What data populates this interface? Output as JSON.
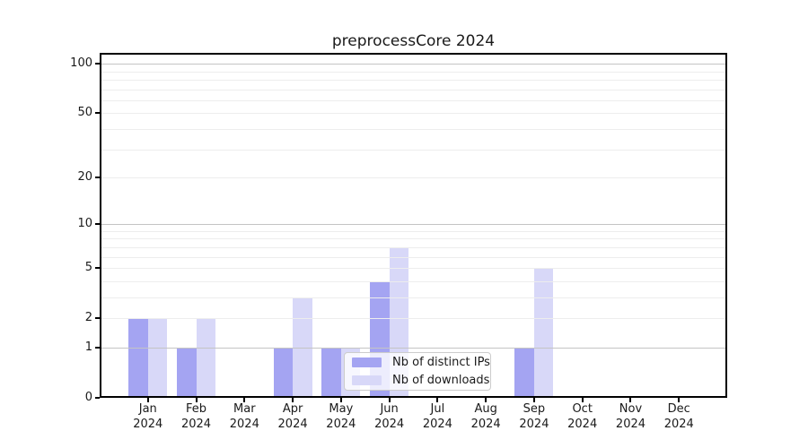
{
  "title": "preprocessCore 2024",
  "colors": {
    "ips_bar": "#a4a4f2",
    "downloads_bar": "#d8d8f8",
    "grid_decade": "#c4c4c4",
    "grid_minor": "#ededed",
    "spine": "#000000",
    "text": "#1a1a1a",
    "legend_border": "#cccccc"
  },
  "y_axis": {
    "tick_labels": [
      "100",
      "50",
      "20",
      "10",
      "5",
      "2",
      "1",
      "0"
    ]
  },
  "x_axis": {
    "months": [
      "Jan",
      "Feb",
      "Mar",
      "Apr",
      "May",
      "Jun",
      "Jul",
      "Aug",
      "Sep",
      "Oct",
      "Nov",
      "Dec"
    ],
    "year": "2024"
  },
  "legend": {
    "items": [
      {
        "label": "Nb of distinct IPs",
        "color": "#a4a4f2"
      },
      {
        "label": "Nb of downloads",
        "color": "#d8d8f8"
      }
    ]
  },
  "chart_data": {
    "type": "bar",
    "title": "preprocessCore 2024",
    "categories": [
      "Jan 2024",
      "Feb 2024",
      "Mar 2024",
      "Apr 2024",
      "May 2024",
      "Jun 2024",
      "Jul 2024",
      "Aug 2024",
      "Sep 2024",
      "Oct 2024",
      "Nov 2024",
      "Dec 2024"
    ],
    "series": [
      {
        "name": "Nb of distinct IPs",
        "color": "#a4a4f2",
        "values": [
          2,
          1,
          0,
          1,
          1,
          4,
          0,
          0,
          1,
          0,
          0,
          0
        ]
      },
      {
        "name": "Nb of downloads",
        "color": "#d8d8f8",
        "values": [
          2,
          2,
          0,
          3,
          1,
          7,
          0,
          0,
          5,
          0,
          0,
          0
        ]
      }
    ],
    "xlabel": "",
    "ylabel": "",
    "y_scale": "log10(value+1)",
    "y_ticks": [
      100,
      50,
      20,
      10,
      5,
      2,
      1,
      0
    ],
    "y_decade_gridlines": [
      1,
      10,
      100
    ],
    "y_minor_gridlines": [
      2,
      3,
      4,
      5,
      6,
      7,
      8,
      9,
      20,
      30,
      40,
      50,
      60,
      70,
      80,
      90
    ],
    "ylim": [
      0,
      116
    ],
    "grid": "horizontal",
    "legend_position": "inside-bottom-center"
  }
}
